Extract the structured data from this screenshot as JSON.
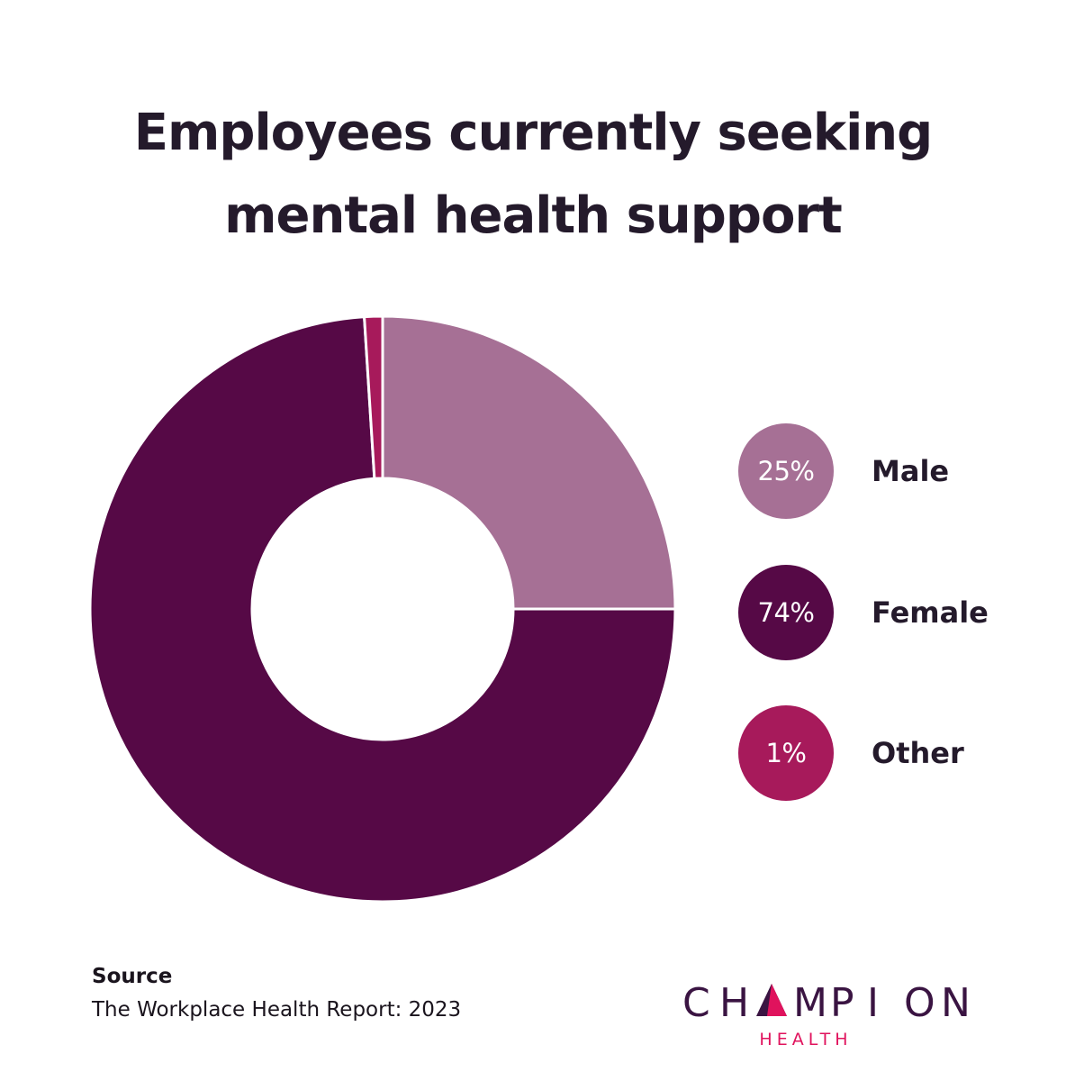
{
  "title_lines": [
    "Employees currently seeking",
    "mental health support"
  ],
  "chart_data": {
    "type": "pie",
    "style": "donut",
    "title": "Employees currently seeking mental health support",
    "start": "top, clockwise",
    "slices": [
      {
        "label": "Male",
        "value": 25,
        "display": "25%",
        "color": "#a67095"
      },
      {
        "label": "Female",
        "value": 74,
        "display": "74%",
        "color": "#560946"
      },
      {
        "label": "Other",
        "value": 1,
        "display": "1%",
        "color": "#a71a5b"
      }
    ],
    "legend_placement": "right"
  },
  "source": {
    "heading": "Source",
    "text": "The Workplace Health Report: 2023"
  },
  "logo": {
    "name": "CHAMPION",
    "sub": "HEALTH",
    "colors": {
      "name": "#3a1442",
      "accent": "#e0135d"
    }
  }
}
